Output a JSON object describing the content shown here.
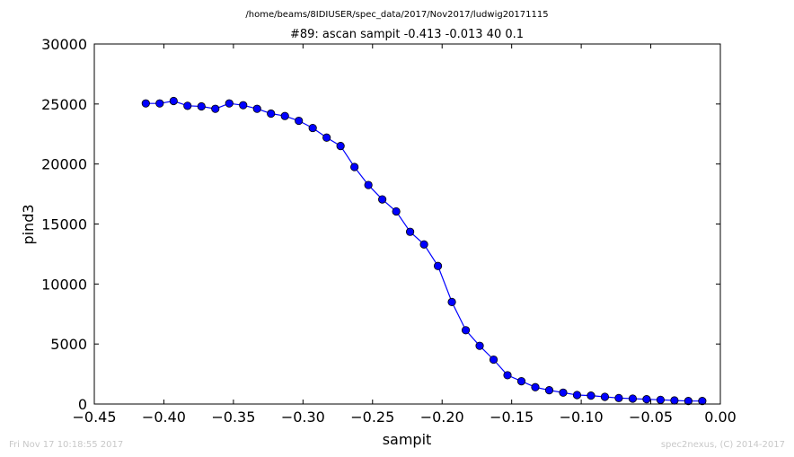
{
  "header": {
    "file_path": "/home/beams/8IDIUSER/spec_data/2017/Nov2017/ludwig20171115"
  },
  "footer": {
    "timestamp": "Fri Nov 17 10:18:55 2017",
    "credit": "spec2nexus, (C) 2014-2017"
  },
  "chart_data": {
    "type": "line",
    "title": "#89: ascan  sampit -0.413 -0.013  40 0.1",
    "xlabel": "sampit",
    "ylabel": "pind3",
    "xlim": [
      -0.45,
      0.0
    ],
    "ylim": [
      0,
      30000
    ],
    "xticks": [
      "−0.45",
      "−0.40",
      "−0.35",
      "−0.30",
      "−0.25",
      "−0.20",
      "−0.15",
      "−0.10",
      "−0.05",
      "0.00"
    ],
    "yticks": [
      "0",
      "5000",
      "10000",
      "15000",
      "20000",
      "25000",
      "30000"
    ],
    "grid": false,
    "marker": "circle",
    "color": "#0000ff",
    "x": [
      -0.413,
      -0.403,
      -0.393,
      -0.383,
      -0.373,
      -0.363,
      -0.353,
      -0.343,
      -0.333,
      -0.323,
      -0.313,
      -0.303,
      -0.293,
      -0.283,
      -0.273,
      -0.263,
      -0.253,
      -0.243,
      -0.233,
      -0.223,
      -0.213,
      -0.203,
      -0.193,
      -0.183,
      -0.173,
      -0.163,
      -0.153,
      -0.143,
      -0.133,
      -0.123,
      -0.113,
      -0.103,
      -0.093,
      -0.083,
      -0.073,
      -0.063,
      -0.053,
      -0.043,
      -0.033,
      -0.023,
      -0.013
    ],
    "y": [
      25050,
      25050,
      25250,
      24850,
      24800,
      24600,
      25050,
      24900,
      24600,
      24200,
      24000,
      23600,
      23000,
      22200,
      21500,
      19750,
      18250,
      17050,
      16050,
      14350,
      13300,
      11500,
      8500,
      6150,
      4850,
      3700,
      2400,
      1900,
      1400,
      1150,
      950,
      750,
      700,
      600,
      500,
      450,
      400,
      350,
      300,
      250,
      250
    ]
  }
}
